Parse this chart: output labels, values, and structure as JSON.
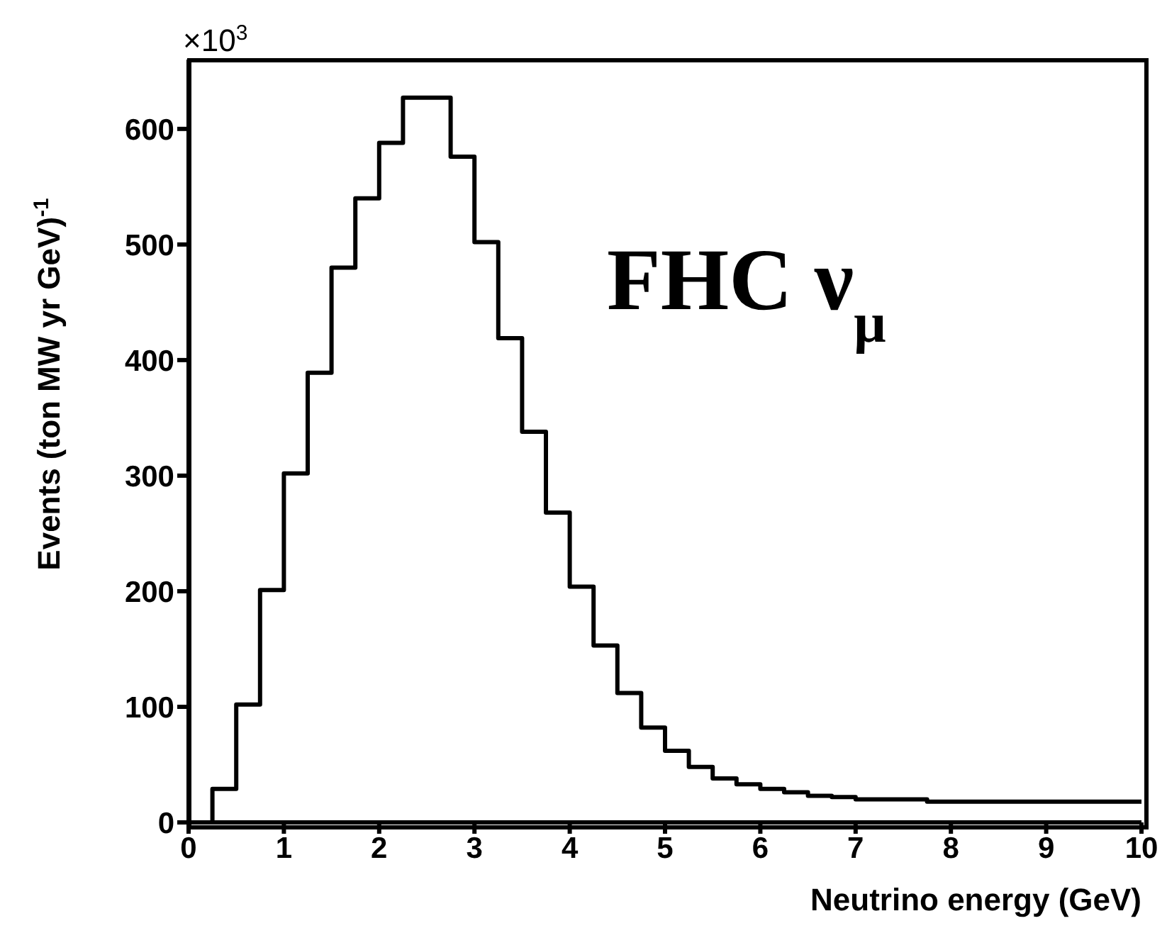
{
  "chart_data": {
    "type": "histogram",
    "xlabel": "Neutrino energy (GeV)",
    "ylabel": "Events (ton MW yr GeV)$^{-1}$",
    "annotations": [
      "×10$^{3}$",
      "FHC ν$_{μ}$"
    ],
    "bins": [
      0,
      0.25,
      0.5,
      0.75,
      1,
      1.25,
      1.5,
      1.75,
      2,
      2.25,
      2.5,
      2.75,
      3,
      3.25,
      3.5,
      3.75,
      4,
      4.25,
      4.5,
      4.75,
      5,
      5.25,
      5.5,
      5.75,
      6,
      6.25,
      6.5,
      6.75,
      7,
      7.25,
      7.5,
      7.75,
      8,
      8.25,
      8.5,
      8.75,
      9,
      9.25,
      9.5,
      9.75,
      10
    ],
    "values": [
      0,
      29,
      102,
      201,
      302,
      389,
      480,
      540,
      588,
      627,
      627,
      576,
      502,
      419,
      338,
      268,
      204,
      153,
      112,
      82,
      62,
      48,
      38,
      33,
      29,
      26,
      23,
      22,
      20,
      20,
      20,
      18,
      18,
      18,
      18,
      18,
      18,
      18,
      18,
      18
    ],
    "color": "#000000",
    "xlim": [
      0,
      10
    ],
    "xticks": [
      0,
      1,
      2,
      3,
      4,
      5,
      6,
      7,
      8,
      9,
      10
    ],
    "ylim": [
      0,
      660
    ],
    "yticks": [
      0,
      100,
      200,
      300,
      400,
      500,
      600
    ],
    "grid": false,
    "legend": false
  }
}
